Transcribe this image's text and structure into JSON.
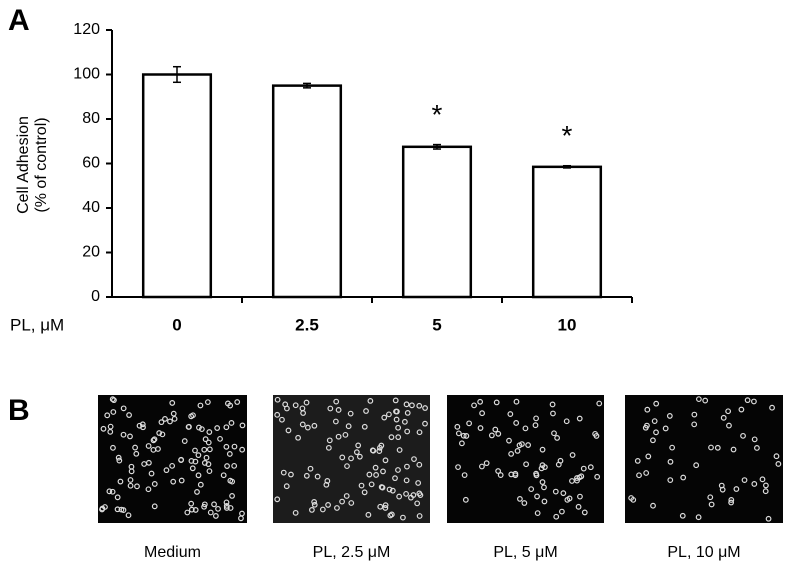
{
  "panel_labels": [
    "A",
    "B"
  ],
  "chart_data": {
    "type": "bar",
    "ylabel": [
      "Cell Adhesion",
      "(% of control)"
    ],
    "xlabel": "PL, μM",
    "categories": [
      "0",
      "2.5",
      "5",
      "10"
    ],
    "values": [
      100,
      95,
      67.5,
      58.5
    ],
    "errors": [
      3.5,
      1,
      1,
      0.5
    ],
    "annotations": [
      null,
      null,
      "*",
      "*"
    ],
    "color": "#ffffff",
    "ylim": [
      0,
      120
    ],
    "yticks": [
      0,
      20,
      40,
      60,
      80,
      100,
      120
    ]
  },
  "images": [
    {
      "caption": "Medium"
    },
    {
      "caption": "PL, 2.5 μM"
    },
    {
      "caption": "PL, 5 μM"
    },
    {
      "caption": "PL, 10 μM"
    }
  ]
}
